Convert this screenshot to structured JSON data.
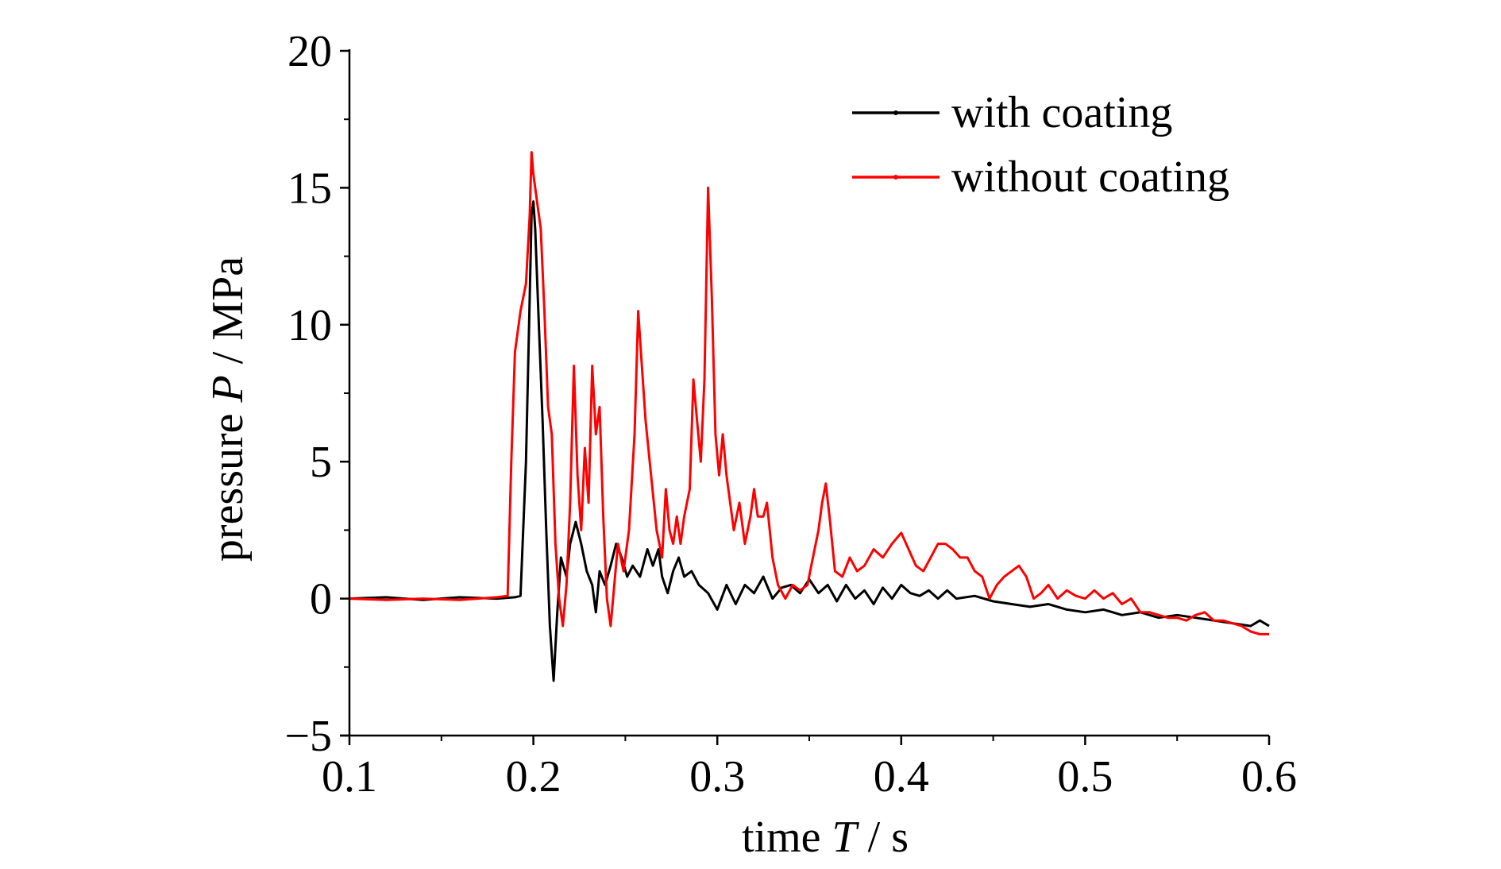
{
  "chart_data": {
    "type": "line",
    "title": "",
    "xlabel": {
      "prefix": "time ",
      "symbol": "T",
      "unit": " / s"
    },
    "ylabel": {
      "prefix": "pressure ",
      "symbol": "P",
      "unit": " / MPa"
    },
    "xlim": [
      0.1,
      0.6
    ],
    "ylim": [
      -5,
      20
    ],
    "xticks": [
      "0.1",
      "0.2",
      "0.3",
      "0.4",
      "0.5",
      "0.6"
    ],
    "yticks": [
      "−5",
      "0",
      "5",
      "10",
      "15",
      "20"
    ],
    "grid": false,
    "legend_position": "top-right",
    "series": [
      {
        "name": "with coating",
        "color": "#000000",
        "points": [
          [
            0.1,
            0.0
          ],
          [
            0.12,
            0.05
          ],
          [
            0.14,
            -0.05
          ],
          [
            0.16,
            0.05
          ],
          [
            0.18,
            0.0
          ],
          [
            0.19,
            0.05
          ],
          [
            0.193,
            0.1
          ],
          [
            0.196,
            5.0
          ],
          [
            0.198,
            11.0
          ],
          [
            0.199,
            14.0
          ],
          [
            0.2,
            14.5
          ],
          [
            0.201,
            13.5
          ],
          [
            0.203,
            10.0
          ],
          [
            0.205,
            6.5
          ],
          [
            0.207,
            2.5
          ],
          [
            0.209,
            -1.0
          ],
          [
            0.211,
            -3.0
          ],
          [
            0.213,
            -0.5
          ],
          [
            0.215,
            1.5
          ],
          [
            0.218,
            0.8
          ],
          [
            0.22,
            2.0
          ],
          [
            0.223,
            2.8
          ],
          [
            0.226,
            2.0
          ],
          [
            0.229,
            1.0
          ],
          [
            0.232,
            0.5
          ],
          [
            0.234,
            -0.5
          ],
          [
            0.236,
            1.0
          ],
          [
            0.239,
            0.5
          ],
          [
            0.242,
            1.2
          ],
          [
            0.245,
            2.0
          ],
          [
            0.248,
            1.5
          ],
          [
            0.251,
            0.8
          ],
          [
            0.254,
            1.2
          ],
          [
            0.258,
            0.8
          ],
          [
            0.262,
            1.8
          ],
          [
            0.265,
            1.2
          ],
          [
            0.268,
            1.8
          ],
          [
            0.27,
            0.8
          ],
          [
            0.273,
            0.2
          ],
          [
            0.276,
            1.0
          ],
          [
            0.279,
            1.5
          ],
          [
            0.282,
            0.8
          ],
          [
            0.286,
            1.0
          ],
          [
            0.29,
            0.5
          ],
          [
            0.295,
            0.2
          ],
          [
            0.3,
            -0.4
          ],
          [
            0.305,
            0.5
          ],
          [
            0.31,
            -0.2
          ],
          [
            0.315,
            0.5
          ],
          [
            0.32,
            0.2
          ],
          [
            0.325,
            0.8
          ],
          [
            0.33,
            0.0
          ],
          [
            0.335,
            0.4
          ],
          [
            0.34,
            0.5
          ],
          [
            0.345,
            0.2
          ],
          [
            0.35,
            0.7
          ],
          [
            0.355,
            0.2
          ],
          [
            0.36,
            0.5
          ],
          [
            0.365,
            -0.1
          ],
          [
            0.37,
            0.5
          ],
          [
            0.375,
            0.0
          ],
          [
            0.38,
            0.3
          ],
          [
            0.385,
            -0.2
          ],
          [
            0.39,
            0.4
          ],
          [
            0.395,
            0.0
          ],
          [
            0.4,
            0.5
          ],
          [
            0.405,
            0.2
          ],
          [
            0.41,
            0.1
          ],
          [
            0.415,
            0.3
          ],
          [
            0.42,
            0.0
          ],
          [
            0.425,
            0.3
          ],
          [
            0.43,
            0.0
          ],
          [
            0.44,
            0.1
          ],
          [
            0.45,
            -0.1
          ],
          [
            0.46,
            -0.2
          ],
          [
            0.47,
            -0.3
          ],
          [
            0.48,
            -0.2
          ],
          [
            0.49,
            -0.4
          ],
          [
            0.5,
            -0.5
          ],
          [
            0.51,
            -0.4
          ],
          [
            0.52,
            -0.6
          ],
          [
            0.53,
            -0.5
          ],
          [
            0.54,
            -0.7
          ],
          [
            0.55,
            -0.6
          ],
          [
            0.56,
            -0.7
          ],
          [
            0.57,
            -0.8
          ],
          [
            0.58,
            -0.9
          ],
          [
            0.59,
            -1.0
          ],
          [
            0.595,
            -0.8
          ],
          [
            0.6,
            -1.0
          ]
        ]
      },
      {
        "name": "without coating",
        "color": "#ff0000",
        "points": [
          [
            0.1,
            0.0
          ],
          [
            0.12,
            -0.05
          ],
          [
            0.14,
            0.0
          ],
          [
            0.16,
            -0.05
          ],
          [
            0.18,
            0.05
          ],
          [
            0.186,
            0.1
          ],
          [
            0.188,
            5.0
          ],
          [
            0.19,
            9.0
          ],
          [
            0.193,
            10.5
          ],
          [
            0.196,
            11.5
          ],
          [
            0.198,
            14.0
          ],
          [
            0.199,
            16.3
          ],
          [
            0.2,
            15.5
          ],
          [
            0.202,
            14.5
          ],
          [
            0.204,
            13.5
          ],
          [
            0.206,
            10.5
          ],
          [
            0.208,
            7.0
          ],
          [
            0.21,
            6.0
          ],
          [
            0.212,
            2.0
          ],
          [
            0.214,
            0.0
          ],
          [
            0.216,
            -1.0
          ],
          [
            0.218,
            0.5
          ],
          [
            0.22,
            3.5
          ],
          [
            0.222,
            8.5
          ],
          [
            0.224,
            4.5
          ],
          [
            0.226,
            2.5
          ],
          [
            0.228,
            5.5
          ],
          [
            0.23,
            3.5
          ],
          [
            0.232,
            8.5
          ],
          [
            0.234,
            6.0
          ],
          [
            0.236,
            7.0
          ],
          [
            0.238,
            3.0
          ],
          [
            0.24,
            0.0
          ],
          [
            0.242,
            -1.0
          ],
          [
            0.244,
            0.5
          ],
          [
            0.246,
            2.0
          ],
          [
            0.249,
            1.0
          ],
          [
            0.252,
            2.5
          ],
          [
            0.255,
            6.0
          ],
          [
            0.257,
            10.5
          ],
          [
            0.259,
            8.5
          ],
          [
            0.261,
            6.5
          ],
          [
            0.264,
            4.5
          ],
          [
            0.267,
            2.5
          ],
          [
            0.27,
            1.5
          ],
          [
            0.272,
            4.0
          ],
          [
            0.274,
            2.5
          ],
          [
            0.276,
            2.0
          ],
          [
            0.278,
            3.0
          ],
          [
            0.28,
            2.0
          ],
          [
            0.282,
            3.0
          ],
          [
            0.285,
            4.0
          ],
          [
            0.287,
            8.0
          ],
          [
            0.289,
            6.5
          ],
          [
            0.291,
            5.0
          ],
          [
            0.293,
            8.0
          ],
          [
            0.295,
            15.0
          ],
          [
            0.297,
            11.0
          ],
          [
            0.299,
            6.0
          ],
          [
            0.301,
            4.5
          ],
          [
            0.303,
            6.0
          ],
          [
            0.305,
            4.5
          ],
          [
            0.307,
            3.5
          ],
          [
            0.309,
            2.5
          ],
          [
            0.312,
            3.5
          ],
          [
            0.315,
            2.0
          ],
          [
            0.318,
            3.0
          ],
          [
            0.32,
            4.0
          ],
          [
            0.322,
            3.0
          ],
          [
            0.325,
            3.0
          ],
          [
            0.327,
            3.5
          ],
          [
            0.33,
            1.5
          ],
          [
            0.333,
            0.5
          ],
          [
            0.337,
            0.0
          ],
          [
            0.341,
            0.5
          ],
          [
            0.345,
            0.3
          ],
          [
            0.349,
            0.5
          ],
          [
            0.352,
            1.5
          ],
          [
            0.355,
            2.5
          ],
          [
            0.357,
            3.5
          ],
          [
            0.359,
            4.2
          ],
          [
            0.361,
            3.0
          ],
          [
            0.364,
            1.0
          ],
          [
            0.368,
            0.8
          ],
          [
            0.372,
            1.5
          ],
          [
            0.376,
            1.0
          ],
          [
            0.38,
            1.2
          ],
          [
            0.385,
            1.8
          ],
          [
            0.39,
            1.5
          ],
          [
            0.395,
            2.0
          ],
          [
            0.4,
            2.4
          ],
          [
            0.404,
            1.8
          ],
          [
            0.408,
            1.2
          ],
          [
            0.412,
            1.0
          ],
          [
            0.416,
            1.5
          ],
          [
            0.42,
            2.0
          ],
          [
            0.424,
            2.0
          ],
          [
            0.428,
            1.8
          ],
          [
            0.432,
            1.5
          ],
          [
            0.436,
            1.5
          ],
          [
            0.44,
            1.0
          ],
          [
            0.444,
            0.8
          ],
          [
            0.448,
            0.0
          ],
          [
            0.452,
            0.5
          ],
          [
            0.456,
            0.8
          ],
          [
            0.46,
            1.0
          ],
          [
            0.464,
            1.2
          ],
          [
            0.468,
            0.8
          ],
          [
            0.472,
            0.0
          ],
          [
            0.476,
            0.2
          ],
          [
            0.48,
            0.5
          ],
          [
            0.485,
            0.0
          ],
          [
            0.49,
            0.3
          ],
          [
            0.495,
            0.1
          ],
          [
            0.5,
            0.0
          ],
          [
            0.505,
            0.3
          ],
          [
            0.51,
            0.0
          ],
          [
            0.515,
            0.2
          ],
          [
            0.52,
            -0.2
          ],
          [
            0.525,
            0.0
          ],
          [
            0.53,
            -0.5
          ],
          [
            0.535,
            -0.5
          ],
          [
            0.54,
            -0.6
          ],
          [
            0.545,
            -0.7
          ],
          [
            0.55,
            -0.7
          ],
          [
            0.555,
            -0.8
          ],
          [
            0.56,
            -0.6
          ],
          [
            0.565,
            -0.5
          ],
          [
            0.57,
            -0.8
          ],
          [
            0.575,
            -0.8
          ],
          [
            0.58,
            -0.9
          ],
          [
            0.585,
            -1.0
          ],
          [
            0.59,
            -1.2
          ],
          [
            0.595,
            -1.3
          ],
          [
            0.6,
            -1.3
          ]
        ]
      }
    ]
  }
}
